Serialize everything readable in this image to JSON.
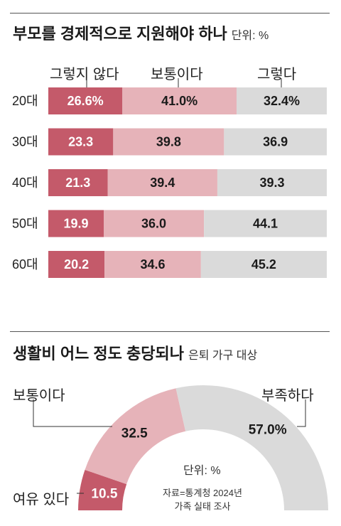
{
  "colors": {
    "dark": "#c45a6a",
    "mid": "#e6b3b9",
    "light": "#dadada"
  },
  "chart_data": [
    {
      "type": "bar",
      "title": "부모를 경제적으로 지원해야 하나",
      "unit_label": "단위: %",
      "legend": [
        "그렇지 않다",
        "보통이다",
        "그렇다"
      ],
      "categories": [
        "20대",
        "30대",
        "40대",
        "50대",
        "60대"
      ],
      "series": [
        {
          "name": "그렇지 않다",
          "values": [
            26.6,
            23.3,
            21.3,
            19.9,
            20.2
          ],
          "labels": [
            "26.6%",
            "23.3",
            "21.3",
            "19.9",
            "20.2"
          ]
        },
        {
          "name": "보통이다",
          "values": [
            41.0,
            39.8,
            39.4,
            36.0,
            34.6
          ],
          "labels": [
            "41.0%",
            "39.8",
            "39.4",
            "36.0",
            "34.6"
          ]
        },
        {
          "name": "그렇다",
          "values": [
            32.4,
            36.9,
            39.3,
            44.1,
            45.2
          ],
          "labels": [
            "32.4%",
            "36.9",
            "39.3",
            "44.1",
            "45.2"
          ]
        }
      ],
      "stacked": true,
      "orientation": "horizontal"
    },
    {
      "type": "pie",
      "title": "생활비 어느 정도 충당되나",
      "subtitle": "은퇴 가구 대상",
      "shape": "half-donut",
      "categories": [
        "여유 있다",
        "보통이다",
        "부족하다"
      ],
      "values": [
        10.5,
        32.5,
        57.0
      ],
      "value_labels": [
        "10.5",
        "32.5",
        "57.0%"
      ],
      "unit_label": "단위: %",
      "source_lines": [
        "자료=통계청 2024년",
        "가족 실태 조사"
      ]
    }
  ]
}
